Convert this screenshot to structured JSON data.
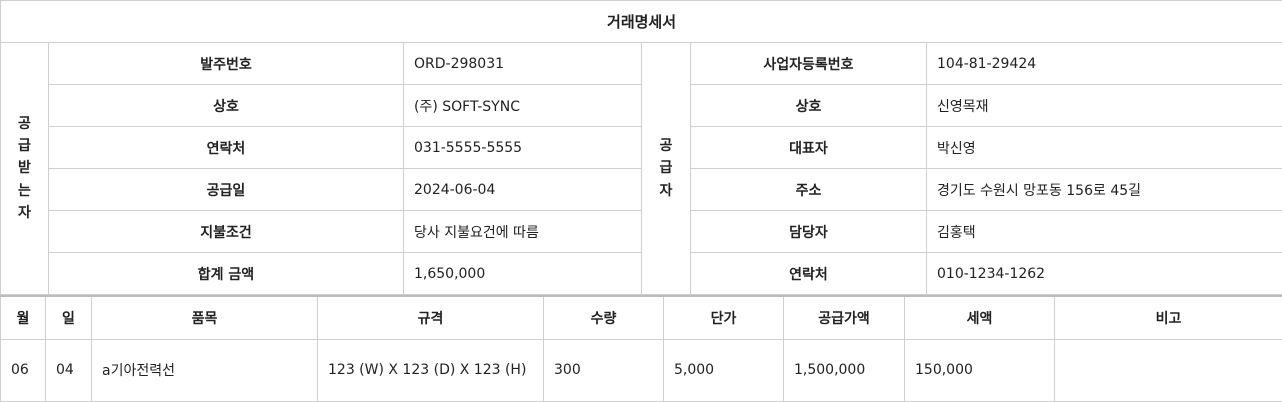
{
  "document": {
    "title": "거래명세서"
  },
  "receiver": {
    "vertical_label": [
      "공",
      "급",
      "받",
      "는",
      "자"
    ],
    "rows": [
      {
        "label": "발주번호",
        "value": "ORD-298031"
      },
      {
        "label": "상호",
        "value": "(주) SOFT-SYNC"
      },
      {
        "label": "연락처",
        "value": "031-5555-5555"
      },
      {
        "label": "공급일",
        "value": "2024-06-04"
      },
      {
        "label": "지불조건",
        "value": "당사 지불요건에 따름"
      },
      {
        "label": "합계 금액",
        "value": "1,650,000"
      }
    ]
  },
  "supplier": {
    "vertical_label": [
      "공",
      "급",
      "자"
    ],
    "rows": [
      {
        "label": "사업자등록번호",
        "value": "104-81-29424"
      },
      {
        "label": "상호",
        "value": "신영목재"
      },
      {
        "label": "대표자",
        "value": "박신영"
      },
      {
        "label": "주소",
        "value": "경기도 수원시 망포동 156로 45길"
      },
      {
        "label": "담당자",
        "value": "김홍택"
      },
      {
        "label": "연락처",
        "value": "010-1234-1262"
      }
    ]
  },
  "items": {
    "headers": [
      "월",
      "일",
      "품목",
      "규격",
      "수량",
      "단가",
      "공급가액",
      "세액",
      "비고"
    ],
    "rows": [
      {
        "month": "06",
        "day": "04",
        "item": "a기아전력선",
        "spec": "123 (W) X 123 (D) X 123 (H)",
        "qty": "300",
        "unit_price": "5,000",
        "supply_amount": "1,500,000",
        "tax": "150,000",
        "note": ""
      }
    ]
  }
}
